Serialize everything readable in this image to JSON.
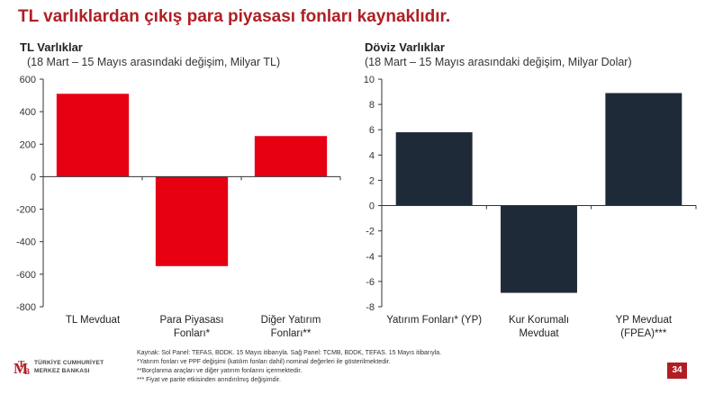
{
  "slide": {
    "title": "TL varlıklardan çıkış para piyasası fonları kaynaklıdır.",
    "page_number": "34",
    "brand_color": "#b01e24"
  },
  "footer": {
    "notes": [
      "Kaynak: Sol Panel: TEFAS, BDDK. 15 Mayıs itibarıyla. Sağ Panel: TCMB, BDDK, TEFAS. 15 Mayıs itibarıyla.",
      "*Yatırım fonları ve PPF değişimi (katılım fonları dahil) nominal değerleri ile gösterilmektedir.",
      "**Borçlanma araçları ve diğer yatırım fonlarını içermektedir.",
      "*** Fiyat ve parite etkisinden arındırılmış değişimdir."
    ],
    "logo": {
      "line1": "TÜRKİYE CUMHURİYET",
      "line2": "MERKEZ BANKASI",
      "mark_icon": "tcmb-logo-icon"
    }
  },
  "chart_data": [
    {
      "type": "bar",
      "title": "TL Varlıklar",
      "subtitle": "(18 Mart – 15 Mayıs arasındaki değişim, Milyar TL)",
      "categories": [
        [
          "TL Mevduat"
        ],
        [
          "Para Piyasası",
          "Fonları*"
        ],
        [
          "Diğer Yatırım",
          "Fonları**"
        ]
      ],
      "values": [
        510,
        -550,
        250
      ],
      "ylim": [
        -800,
        600
      ],
      "yticks": [
        600,
        400,
        200,
        0,
        -200,
        -400,
        -600,
        -800
      ],
      "grid": false,
      "color": "#e60012"
    },
    {
      "type": "bar",
      "title": "Döviz Varlıklar",
      "subtitle": "(18 Mart – 15 Mayıs arasındaki değişim, Milyar Dolar)",
      "categories": [
        [
          "Yatırım Fonları* (YP)"
        ],
        [
          "Kur Korumalı",
          "Mevduat"
        ],
        [
          "YP Mevduat",
          "(FPEA)***"
        ]
      ],
      "values": [
        5.8,
        -6.9,
        8.9
      ],
      "ylim": [
        -8,
        10
      ],
      "yticks": [
        10,
        8,
        6,
        4,
        2,
        0,
        -2,
        -4,
        -6,
        -8
      ],
      "grid": false,
      "color": "#1e2a38"
    }
  ]
}
